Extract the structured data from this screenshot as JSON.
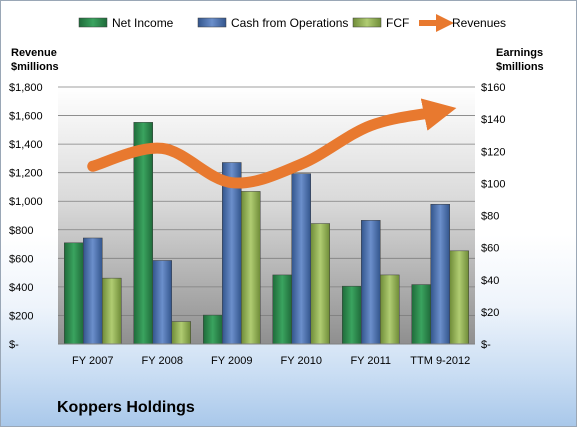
{
  "chart_data": {
    "type": "bar",
    "categories": [
      "FY 2007",
      "FY 2008",
      "FY 2009",
      "FY 2010",
      "FY 2011",
      "TTM 9-2012"
    ],
    "series": [
      {
        "name": "Net Income",
        "axis": "right",
        "kind": "bar",
        "color": "#2e8b4e",
        "values": [
          63,
          138,
          18,
          43,
          36,
          37
        ]
      },
      {
        "name": "Cash from Operations",
        "axis": "right",
        "kind": "bar",
        "color": "#4a72b0",
        "values": [
          66,
          52,
          113,
          106,
          77,
          87
        ]
      },
      {
        "name": "FCF",
        "axis": "right",
        "kind": "bar",
        "color": "#92b254",
        "values": [
          41,
          14,
          95,
          75,
          43,
          58
        ]
      },
      {
        "name": "Revenues",
        "axis": "left",
        "kind": "line",
        "color": "#e8792f",
        "values": [
          1245,
          1370,
          1130,
          1260,
          1530,
          1630
        ]
      }
    ],
    "left_axis": {
      "label_line1": "Revenue",
      "label_line2": "$millions",
      "ylim": [
        0,
        1800
      ],
      "ticks": [
        "$-",
        "$200",
        "$400",
        "$600",
        "$800",
        "$1,000",
        "$1,200",
        "$1,400",
        "$1,600",
        "$1,800"
      ]
    },
    "right_axis": {
      "label_line1": "Earnings",
      "label_line2": "$millions",
      "ylim": [
        0,
        160
      ],
      "ticks": [
        "$-",
        "$20",
        "$40",
        "$60",
        "$80",
        "$100",
        "$120",
        "$140",
        "$160"
      ]
    },
    "grid": true,
    "legend_position": "top"
  },
  "company": "Koppers Holdings"
}
